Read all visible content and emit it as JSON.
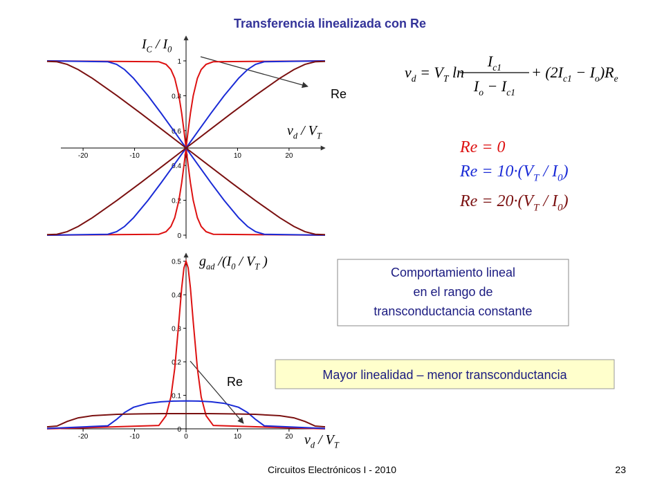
{
  "title": "Transferencia linealizada con Re",
  "chart_data": [
    {
      "type": "line",
      "xlim": [
        -27,
        27
      ],
      "ylim": [
        0,
        1
      ],
      "xticks": [
        -20,
        -10,
        0,
        10,
        20
      ],
      "yticks": [
        0,
        0.2,
        0.4,
        0.6,
        0.8,
        1
      ],
      "x_axis_at": 0.5,
      "y_label": [
        [
          "I",
          "C"
        ],
        [
          " / I",
          "0"
        ]
      ],
      "x_label": [
        [
          "v",
          "d"
        ],
        [
          " / V",
          "T"
        ]
      ],
      "annotation": "Re",
      "series": [
        {
          "color": "#dd1111",
          "x": [
            -27,
            -5.29,
            -3.89,
            -2.94,
            -2.2,
            -1.39,
            -0.85,
            -0.41,
            0,
            0.41,
            0.85,
            1.39,
            2.2,
            2.94,
            3.89,
            5.29,
            27
          ],
          "values": [
            0,
            0.005,
            0.02,
            0.05,
            0.1,
            0.2,
            0.3,
            0.4,
            0.5,
            0.6,
            0.7,
            0.8,
            0.9,
            0.95,
            0.98,
            0.995,
            1
          ],
          "values_falling": [
            1,
            0.995,
            0.98,
            0.95,
            0.9,
            0.8,
            0.7,
            0.6,
            0.5,
            0.4,
            0.3,
            0.2,
            0.1,
            0.05,
            0.02,
            0.005,
            0
          ]
        },
        {
          "color": "#1a2bd6",
          "x": [
            -27,
            -15.19,
            -13.49,
            -11.94,
            -10.2,
            -7.39,
            -4.85,
            -2.41,
            0,
            2.41,
            4.85,
            7.39,
            10.2,
            11.94,
            13.49,
            15.19,
            27
          ],
          "values": [
            0,
            0.005,
            0.02,
            0.05,
            0.1,
            0.2,
            0.3,
            0.4,
            0.5,
            0.6,
            0.7,
            0.8,
            0.9,
            0.95,
            0.98,
            0.995,
            1
          ],
          "values_falling": [
            1,
            0.995,
            0.98,
            0.95,
            0.9,
            0.8,
            0.7,
            0.6,
            0.5,
            0.4,
            0.3,
            0.2,
            0.1,
            0.05,
            0.02,
            0.005,
            0
          ]
        },
        {
          "color": "#7a1010",
          "x": [
            -27,
            -25.09,
            -23.09,
            -20.94,
            -18.2,
            -13.39,
            -8.85,
            -4.41,
            0,
            4.41,
            8.85,
            13.39,
            18.2,
            20.94,
            23.09,
            25.09,
            27
          ],
          "values": [
            0.003,
            0.005,
            0.02,
            0.05,
            0.1,
            0.2,
            0.3,
            0.4,
            0.5,
            0.6,
            0.7,
            0.8,
            0.9,
            0.95,
            0.98,
            0.995,
            0.997
          ],
          "values_falling": [
            0.997,
            0.995,
            0.98,
            0.95,
            0.9,
            0.8,
            0.7,
            0.6,
            0.5,
            0.4,
            0.3,
            0.2,
            0.1,
            0.05,
            0.02,
            0.005,
            0.003
          ]
        }
      ]
    },
    {
      "type": "line",
      "xlim": [
        -27,
        27
      ],
      "ylim": [
        0,
        0.52
      ],
      "xticks": [
        -20,
        -10,
        0,
        10,
        20
      ],
      "yticks": [
        0,
        0.1,
        0.2,
        0.3,
        0.4,
        0.5
      ],
      "x_axis_at": 0,
      "y_label": [
        [
          "g",
          "ad"
        ],
        [
          " /(I",
          "0"
        ],
        [
          " / V",
          "T"
        ],
        [
          " )"
        ]
      ],
      "x_label": [
        [
          "v",
          "d"
        ],
        [
          " / V",
          "T"
        ]
      ],
      "annotation": "Re",
      "series": [
        {
          "color": "#dd1111",
          "x": [
            -27,
            -5.29,
            -3.89,
            -2.94,
            -2.2,
            -1.39,
            -0.85,
            -0.41,
            0,
            0.41,
            0.85,
            1.39,
            2.2,
            2.94,
            3.89,
            5.29,
            27
          ],
          "values": [
            0,
            0.00995,
            0.0392,
            0.095,
            0.18,
            0.32,
            0.42,
            0.48,
            0.5,
            0.48,
            0.42,
            0.32,
            0.18,
            0.095,
            0.0392,
            0.00995,
            0
          ]
        },
        {
          "color": "#1a2bd6",
          "x": [
            -27,
            -15.19,
            -13.49,
            -11.94,
            -10.2,
            -7.39,
            -4.85,
            -2.41,
            0,
            2.41,
            4.85,
            7.39,
            10.2,
            11.94,
            13.49,
            15.19,
            27
          ],
          "values": [
            0.001,
            0.00905,
            0.0282,
            0.0487,
            0.0643,
            0.0762,
            0.0808,
            0.0828,
            0.0833,
            0.0828,
            0.0808,
            0.0762,
            0.0643,
            0.0487,
            0.0282,
            0.00905,
            0.001
          ]
        },
        {
          "color": "#7a1010",
          "x": [
            -27,
            -25.09,
            -23.09,
            -20.94,
            -18.2,
            -13.39,
            -8.85,
            -4.41,
            0,
            4.41,
            8.85,
            13.39,
            18.2,
            20.94,
            23.09,
            25.09,
            27
          ],
          "values": [
            0.006,
            0.0083,
            0.022,
            0.0328,
            0.0391,
            0.0432,
            0.0447,
            0.0453,
            0.0455,
            0.0453,
            0.0447,
            0.0432,
            0.0391,
            0.0328,
            0.022,
            0.0083,
            0.006
          ]
        }
      ]
    }
  ],
  "equation": {
    "lhs": [
      [
        "v",
        "d"
      ],
      [
        " = V",
        "T"
      ],
      [
        " ln"
      ]
    ],
    "numerator": [
      [
        "I",
        "c1"
      ]
    ],
    "denominator": [
      [
        "I",
        "o"
      ],
      [
        " − I",
        "c1"
      ]
    ],
    "rhs": [
      [
        "+ (2I",
        "c1"
      ],
      [
        " − I",
        "o"
      ],
      [
        ")R",
        "e"
      ]
    ]
  },
  "legend": [
    [
      [
        "Re = 0"
      ]
    ],
    [
      [
        "Re = 10·(V",
        "T"
      ],
      [
        " / I",
        "0"
      ],
      [
        ")"
      ]
    ],
    [
      [
        "Re = 20·(V",
        "T"
      ],
      [
        " / I",
        "0"
      ],
      [
        ")"
      ]
    ]
  ],
  "box_linear": [
    "Comportamiento lineal",
    "en el rango de",
    "transconductancia constante"
  ],
  "box_yellow": "Mayor linealidad – menor transconductancia",
  "footer": {
    "course": "Circuitos Electrónicos I - 2010",
    "page": "23"
  }
}
